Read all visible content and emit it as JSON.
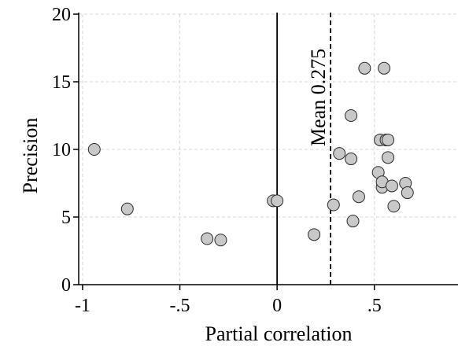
{
  "chart_data": {
    "type": "scatter",
    "title": "",
    "xlabel": "Partial correlation",
    "ylabel": "Precision",
    "xlim": [
      -1.02,
      0.93
    ],
    "ylim": [
      0,
      20
    ],
    "x_ticks": [
      -1,
      -0.5,
      0,
      0.5
    ],
    "x_tick_labels": [
      "-1",
      "-.5",
      "0",
      ".5"
    ],
    "y_ticks": [
      0,
      5,
      10,
      15,
      20
    ],
    "y_tick_labels": [
      "0",
      "5",
      "10",
      "15",
      "20"
    ],
    "grid": true,
    "legend": "none",
    "reference_lines": [
      {
        "axis": "x",
        "value": 0,
        "style": "solid"
      },
      {
        "axis": "x",
        "value": 0.275,
        "style": "dashed",
        "label": "Mean 0.275"
      }
    ],
    "points": [
      {
        "x": -0.94,
        "y": 10.0
      },
      {
        "x": -0.77,
        "y": 5.6
      },
      {
        "x": -0.36,
        "y": 3.4
      },
      {
        "x": -0.29,
        "y": 3.3
      },
      {
        "x": -0.02,
        "y": 6.2
      },
      {
        "x": 0.0,
        "y": 6.2
      },
      {
        "x": 0.19,
        "y": 3.7
      },
      {
        "x": 0.29,
        "y": 5.9
      },
      {
        "x": 0.32,
        "y": 9.7
      },
      {
        "x": 0.38,
        "y": 9.3
      },
      {
        "x": 0.38,
        "y": 12.5
      },
      {
        "x": 0.39,
        "y": 4.7
      },
      {
        "x": 0.42,
        "y": 6.5
      },
      {
        "x": 0.45,
        "y": 16.0
      },
      {
        "x": 0.52,
        "y": 8.3
      },
      {
        "x": 0.53,
        "y": 10.7
      },
      {
        "x": 0.54,
        "y": 7.2
      },
      {
        "x": 0.54,
        "y": 7.6
      },
      {
        "x": 0.55,
        "y": 16.0
      },
      {
        "x": 0.56,
        "y": 10.7
      },
      {
        "x": 0.57,
        "y": 9.4
      },
      {
        "x": 0.57,
        "y": 10.7
      },
      {
        "x": 0.59,
        "y": 7.3
      },
      {
        "x": 0.6,
        "y": 5.8
      },
      {
        "x": 0.66,
        "y": 7.5
      },
      {
        "x": 0.67,
        "y": 6.8
      }
    ],
    "colors": {
      "marker_fill": "#c8c8c8",
      "marker_stroke": "#2a2a2a",
      "grid": "#d9d9d9"
    }
  }
}
